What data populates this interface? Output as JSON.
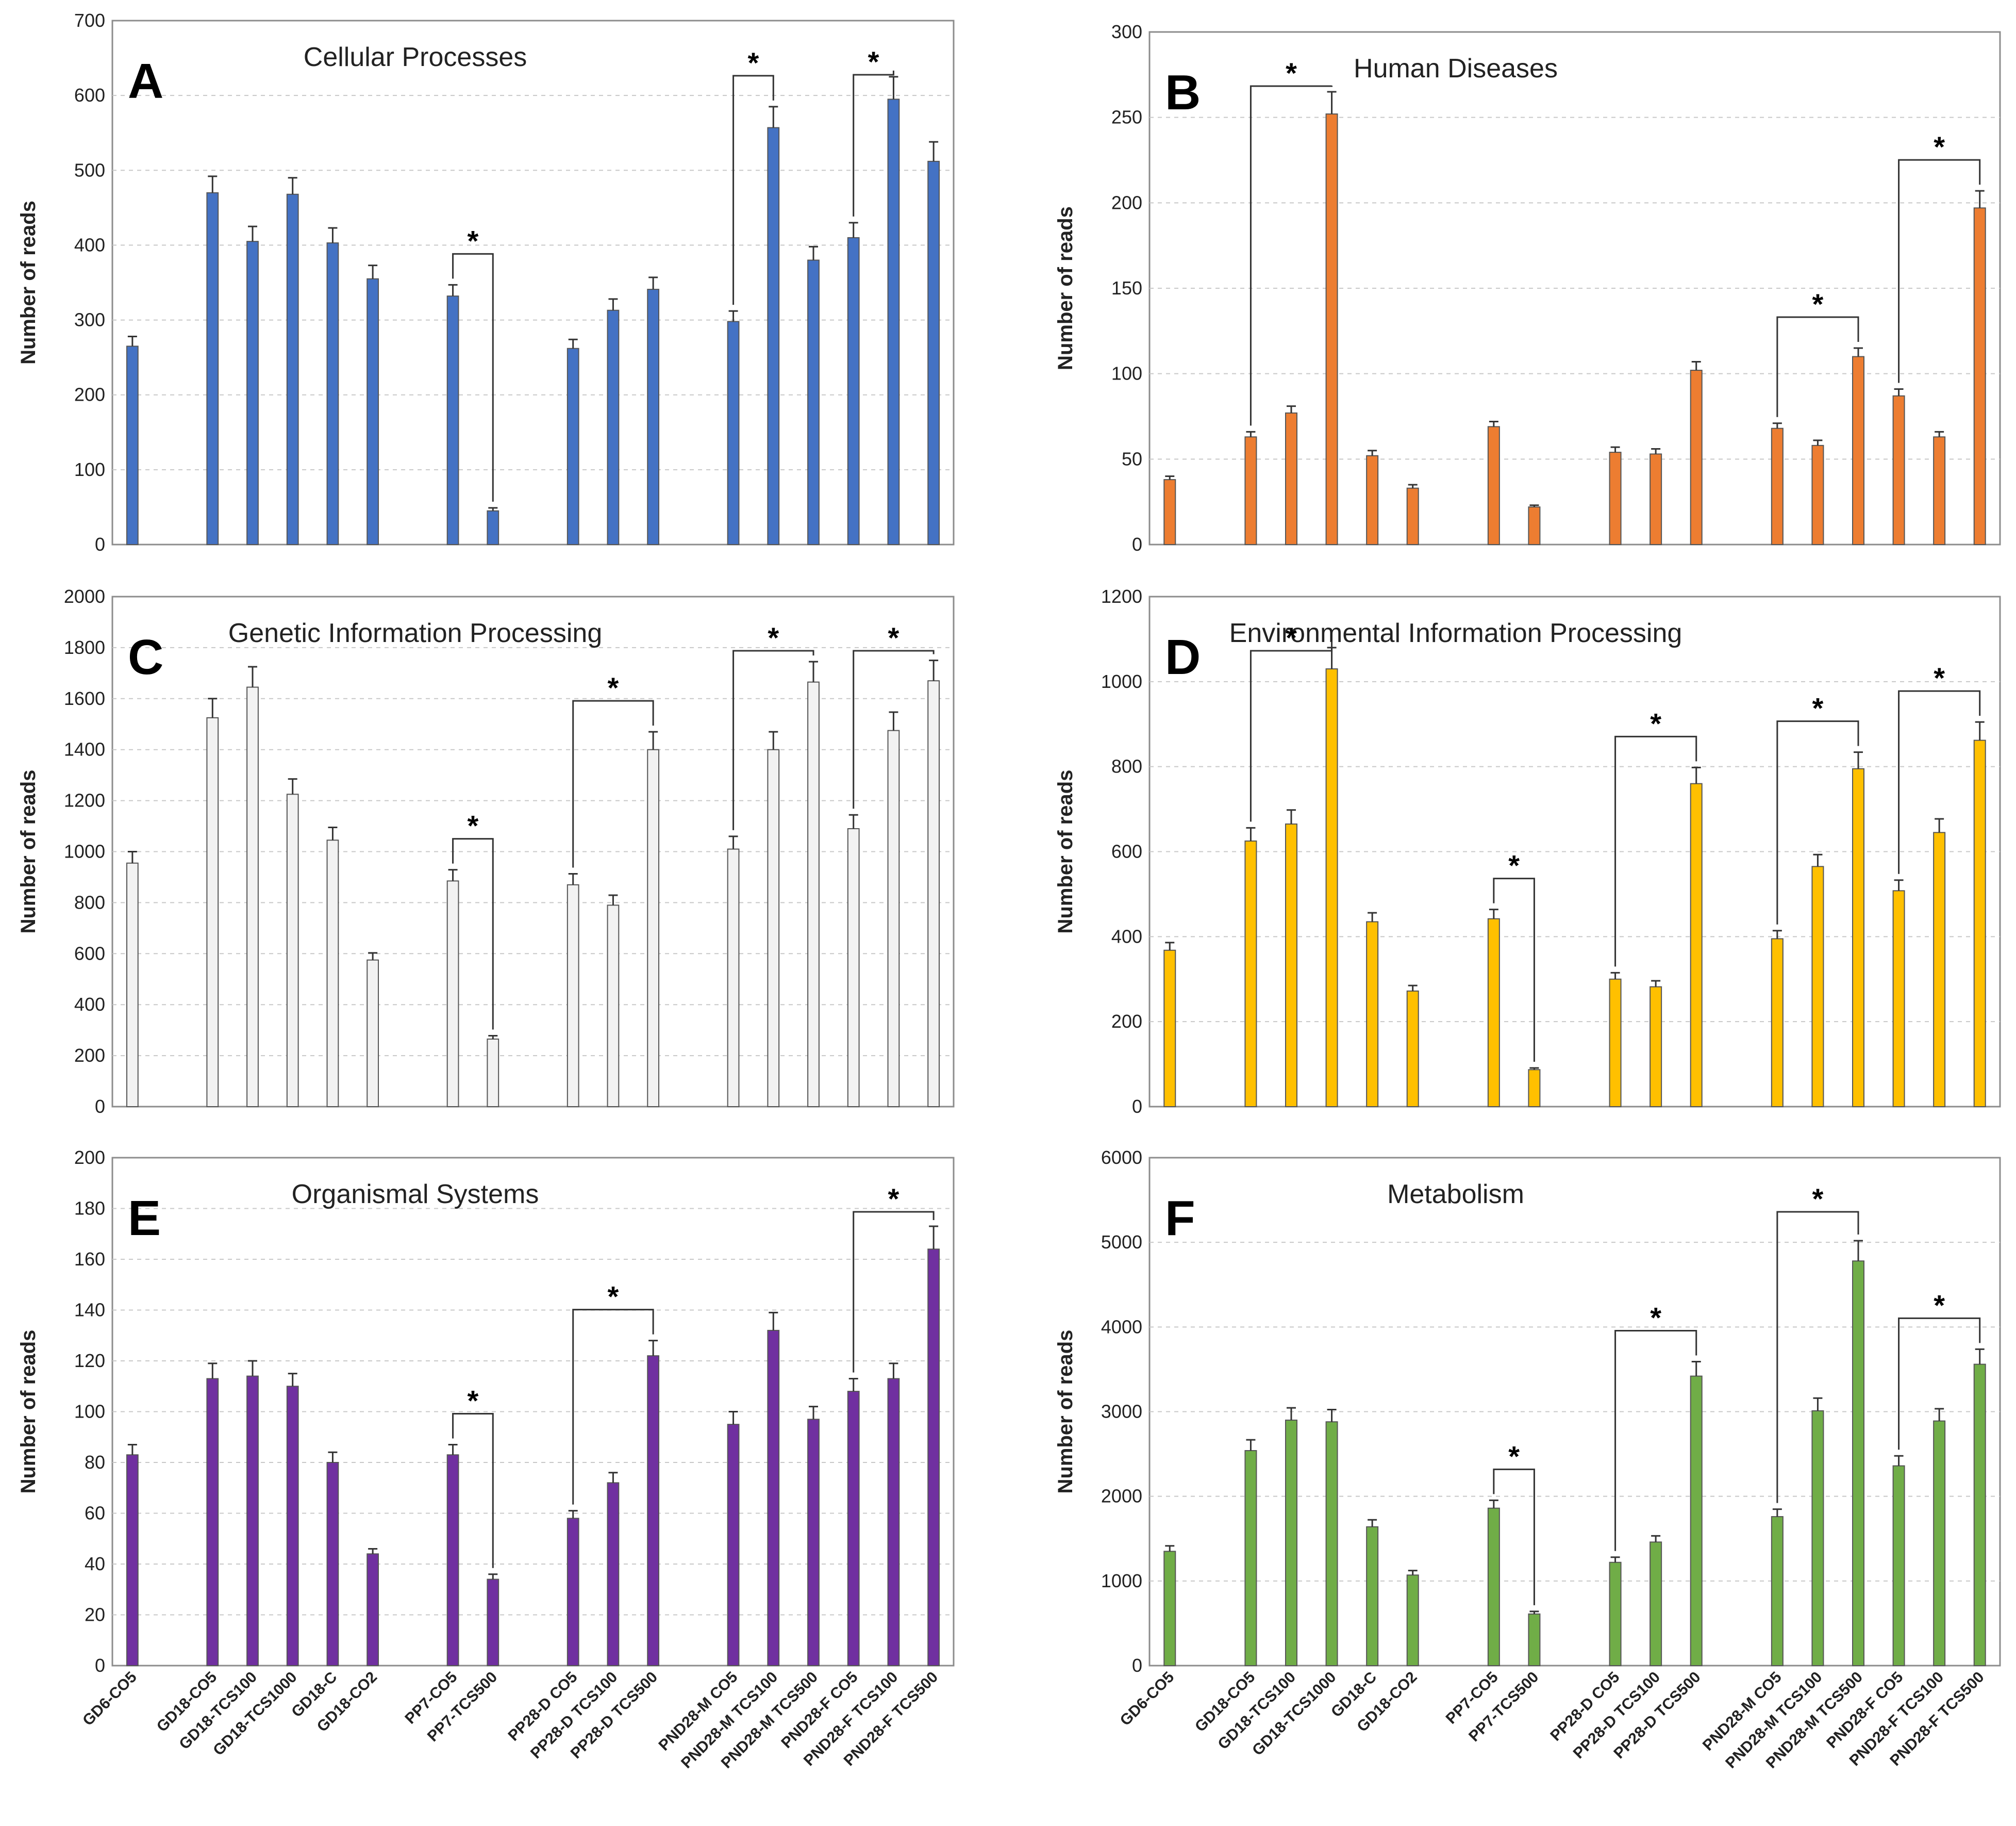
{
  "figure": {
    "categories_display": "shared"
  },
  "chart_data": [
    {
      "type": "bar",
      "letter": "A",
      "title": "Cellular Processes",
      "ylabel": "Number of reads",
      "xlabel": "",
      "color": "#4472C4",
      "ylim": [
        0,
        700
      ],
      "yticks": [
        0,
        100,
        200,
        300,
        400,
        500,
        600,
        700
      ],
      "categories": [
        "GD6-CO5",
        "GD18-CO5",
        "GD18-TCS100",
        "GD18-TCS1000",
        "GD18-C",
        "GD18-CO2",
        "PP7-CO5",
        "PP7-TCS500",
        "PP28-D CO5",
        "PP28-D TCS100",
        "PP28-D TCS500",
        "PND28-M CO5",
        "PND28-M TCS100",
        "PND28-M TCS500",
        "PND28-F CO5",
        "PND28-F TCS100",
        "PND28-F TCS500"
      ],
      "values": [
        265,
        470,
        405,
        468,
        403,
        355,
        332,
        45,
        262,
        313,
        341,
        298,
        557,
        380,
        410,
        595,
        512
      ],
      "errors": [
        13,
        22,
        20,
        22,
        20,
        18,
        15,
        4,
        12,
        15,
        16,
        14,
        28,
        18,
        20,
        30,
        26
      ],
      "significance": [
        {
          "from": 6,
          "to": 7,
          "label": "*"
        },
        {
          "from": 11,
          "to": 12,
          "label": "*"
        },
        {
          "from": 14,
          "to": 15,
          "label": "*"
        }
      ]
    },
    {
      "type": "bar",
      "letter": "B",
      "title": "Human Diseases",
      "ylabel": "Number of reads",
      "xlabel": "",
      "color": "#ED7D31",
      "ylim": [
        0,
        300
      ],
      "yticks": [
        0,
        50,
        100,
        150,
        200,
        250,
        300
      ],
      "categories": [
        "GD6-CO5",
        "GD18-CO5",
        "GD18-TCS100",
        "GD18-TCS1000",
        "GD18-C",
        "GD18-CO2",
        "PP7-CO5",
        "PP7-TCS500",
        "PP28-D CO5",
        "PP28-D TCS100",
        "PP28-D TCS500",
        "PND28-M CO5",
        "PND28-M TCS100",
        "PND28-M TCS500",
        "PND28-F CO5",
        "PND28-F TCS100",
        "PND28-F TCS500"
      ],
      "values": [
        38,
        63,
        77,
        252,
        52,
        33,
        69,
        22,
        54,
        53,
        102,
        68,
        58,
        110,
        87,
        63,
        197
      ],
      "errors": [
        2,
        3,
        4,
        13,
        3,
        2,
        3,
        1,
        3,
        3,
        5,
        3,
        3,
        5,
        4,
        3,
        10
      ],
      "significance": [
        {
          "from": 1,
          "to": 3,
          "label": "*"
        },
        {
          "from": 11,
          "to": 13,
          "label": "*"
        },
        {
          "from": 14,
          "to": 16,
          "label": "*"
        }
      ]
    },
    {
      "type": "bar",
      "letter": "C",
      "title": "Genetic Information Processing",
      "ylabel": "Number of reads",
      "xlabel": "",
      "color": "#F2F2F2",
      "ylim": [
        0,
        2000
      ],
      "yticks": [
        0,
        200,
        400,
        600,
        800,
        1000,
        1200,
        1400,
        1600,
        1800,
        2000
      ],
      "categories": [
        "GD6-CO5",
        "GD18-CO5",
        "GD18-TCS100",
        "GD18-TCS1000",
        "GD18-C",
        "GD18-CO2",
        "PP7-CO5",
        "PP7-TCS500",
        "PP28-D CO5",
        "PP28-D TCS100",
        "PP28-D TCS500",
        "PND28-M CO5",
        "PND28-M TCS100",
        "PND28-M TCS500",
        "PND28-F CO5",
        "PND28-F TCS100",
        "PND28-F TCS500"
      ],
      "values": [
        955,
        1525,
        1645,
        1225,
        1045,
        575,
        885,
        265,
        870,
        790,
        1400,
        1010,
        1400,
        1665,
        1090,
        1475,
        1670
      ],
      "errors": [
        45,
        75,
        80,
        60,
        50,
        28,
        44,
        13,
        43,
        39,
        70,
        50,
        70,
        80,
        54,
        72,
        80
      ],
      "significance": [
        {
          "from": 6,
          "to": 7,
          "label": "*"
        },
        {
          "from": 8,
          "to": 10,
          "label": "*"
        },
        {
          "from": 11,
          "to": 13,
          "label": "*"
        },
        {
          "from": 14,
          "to": 16,
          "label": "*"
        }
      ]
    },
    {
      "type": "bar",
      "letter": "D",
      "title": "Environmental Information Processing",
      "ylabel": "Number of reads",
      "xlabel": "",
      "color": "#FFC000",
      "ylim": [
        0,
        1200
      ],
      "yticks": [
        0,
        200,
        400,
        600,
        800,
        1000,
        1200
      ],
      "categories": [
        "GD6-CO5",
        "GD18-CO5",
        "GD18-TCS100",
        "GD18-TCS1000",
        "GD18-C",
        "GD18-CO2",
        "PP7-CO5",
        "PP7-TCS500",
        "PP28-D CO5",
        "PP28-D TCS100",
        "PP28-D TCS500",
        "PND28-M CO5",
        "PND28-M TCS100",
        "PND28-M TCS500",
        "PND28-F CO5",
        "PND28-F TCS100",
        "PND28-F TCS500"
      ],
      "values": [
        368,
        625,
        665,
        1030,
        435,
        272,
        442,
        87,
        300,
        282,
        760,
        395,
        565,
        795,
        508,
        645,
        862
      ],
      "errors": [
        18,
        31,
        33,
        50,
        21,
        13,
        22,
        4,
        15,
        14,
        38,
        19,
        28,
        39,
        25,
        32,
        43
      ],
      "significance": [
        {
          "from": 1,
          "to": 3,
          "label": "*"
        },
        {
          "from": 6,
          "to": 7,
          "label": "*"
        },
        {
          "from": 8,
          "to": 10,
          "label": "*"
        },
        {
          "from": 11,
          "to": 13,
          "label": "*"
        },
        {
          "from": 14,
          "to": 16,
          "label": "*"
        }
      ]
    },
    {
      "type": "bar",
      "letter": "E",
      "title": "Organismal Systems",
      "ylabel": "Number of reads",
      "xlabel": "",
      "color": "#7030A0",
      "ylim": [
        0,
        200
      ],
      "yticks": [
        0,
        20,
        40,
        60,
        80,
        100,
        120,
        140,
        160,
        180,
        200
      ],
      "categories": [
        "GD6-CO5",
        "GD18-CO5",
        "GD18-TCS100",
        "GD18-TCS1000",
        "GD18-C",
        "GD18-CO2",
        "PP7-CO5",
        "PP7-TCS500",
        "PP28-D CO5",
        "PP28-D TCS100",
        "PP28-D TCS500",
        "PND28-M CO5",
        "PND28-M TCS100",
        "PND28-M TCS500",
        "PND28-F CO5",
        "PND28-F TCS100",
        "PND28-F TCS500"
      ],
      "values": [
        83,
        113,
        114,
        110,
        80,
        44,
        83,
        34,
        58,
        72,
        122,
        95,
        132,
        97,
        108,
        113,
        164
      ],
      "errors": [
        4,
        6,
        6,
        5,
        4,
        2,
        4,
        2,
        3,
        4,
        6,
        5,
        7,
        5,
        5,
        6,
        9
      ],
      "significance": [
        {
          "from": 6,
          "to": 7,
          "label": "*"
        },
        {
          "from": 8,
          "to": 10,
          "label": "*"
        },
        {
          "from": 14,
          "to": 16,
          "label": "*"
        }
      ]
    },
    {
      "type": "bar",
      "letter": "F",
      "title": "Metabolism",
      "ylabel": "Number of reads",
      "xlabel": "",
      "color": "#70AD47",
      "ylim": [
        0,
        6000
      ],
      "yticks": [
        0,
        1000,
        2000,
        3000,
        4000,
        5000,
        6000
      ],
      "categories": [
        "GD6-CO5",
        "GD18-CO5",
        "GD18-TCS100",
        "GD18-TCS1000",
        "GD18-C",
        "GD18-CO2",
        "PP7-CO5",
        "PP7-TCS500",
        "PP28-D CO5",
        "PP28-D TCS100",
        "PP28-D TCS500",
        "PND28-M CO5",
        "PND28-M TCS100",
        "PND28-M TCS500",
        "PND28-F CO5",
        "PND28-F TCS100",
        "PND28-F TCS500"
      ],
      "values": [
        1350,
        2540,
        2900,
        2880,
        1640,
        1070,
        1860,
        610,
        1220,
        1460,
        3420,
        1760,
        3010,
        4780,
        2360,
        2890,
        3560
      ],
      "errors": [
        65,
        127,
        145,
        144,
        82,
        53,
        93,
        30,
        61,
        73,
        171,
        88,
        150,
        239,
        118,
        144,
        178
      ],
      "significance": [
        {
          "from": 6,
          "to": 7,
          "label": "*"
        },
        {
          "from": 8,
          "to": 10,
          "label": "*"
        },
        {
          "from": 11,
          "to": 13,
          "label": "*"
        },
        {
          "from": 14,
          "to": 16,
          "label": "*"
        }
      ]
    }
  ]
}
